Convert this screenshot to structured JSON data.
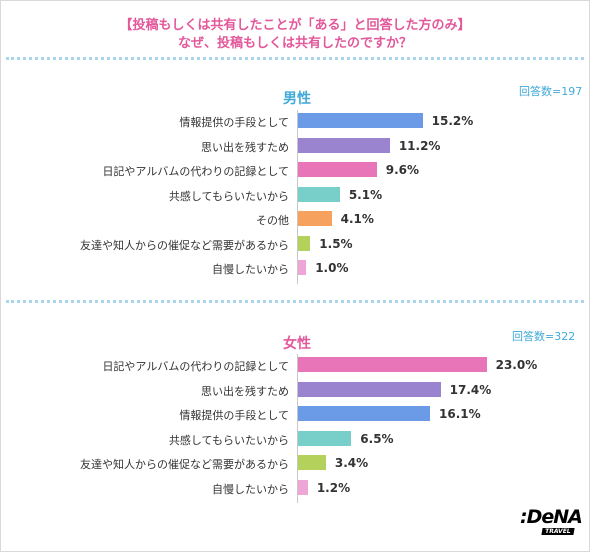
{
  "header": {
    "line1": "【投稿もしくは共有したことが「ある」と回答した方のみ】",
    "line2": "なぜ、投稿もしくは共有したのですか？"
  },
  "colors": {
    "heading": "#e2589a",
    "male_title": "#41a9d8",
    "female_title": "#e2589a",
    "respondents": "#41a9d8",
    "dots": "#a9d6ee"
  },
  "chart_data": [
    {
      "type": "bar",
      "orientation": "horizontal",
      "title": "男性",
      "respondents": "回答数=197",
      "categories": [
        "情報提供の手段として",
        "思い出を残すため",
        "日記やアルバムの代わりの記録として",
        "共感してもらいたいから",
        "その他",
        "友達や知人からの催促など需要があるから",
        "自慢したいから"
      ],
      "values": [
        15.2,
        11.2,
        9.6,
        5.1,
        4.1,
        1.5,
        1.0
      ],
      "labels": [
        "15.2%",
        "11.2%",
        "9.6%",
        "5.1%",
        "4.1%",
        "1.5%",
        "1.0%"
      ],
      "colors": [
        "#6b9be6",
        "#9a84cf",
        "#e875b8",
        "#78cfc9",
        "#f6a15d",
        "#b4d15c",
        "#eea6d6"
      ],
      "xlim": [
        0,
        25
      ],
      "grid": false
    },
    {
      "type": "bar",
      "orientation": "horizontal",
      "title": "女性",
      "respondents": "回答数=322",
      "categories": [
        "日記やアルバムの代わりの記録として",
        "思い出を残すため",
        "情報提供の手段として",
        "共感してもらいたいから",
        "友達や知人からの催促など需要があるから",
        "自慢したいから"
      ],
      "values": [
        23.0,
        17.4,
        16.1,
        6.5,
        3.4,
        1.2
      ],
      "labels": [
        "23.0%",
        "17.4%",
        "16.1%",
        "6.5%",
        "3.4%",
        "1.2%"
      ],
      "colors": [
        "#e875b8",
        "#9a84cf",
        "#6b9be6",
        "#78cfc9",
        "#b4d15c",
        "#eea6d6"
      ],
      "xlim": [
        0,
        25
      ],
      "grid": false
    }
  ],
  "logo": {
    "main": ":DeNA",
    "sub": "TRAVEL"
  }
}
